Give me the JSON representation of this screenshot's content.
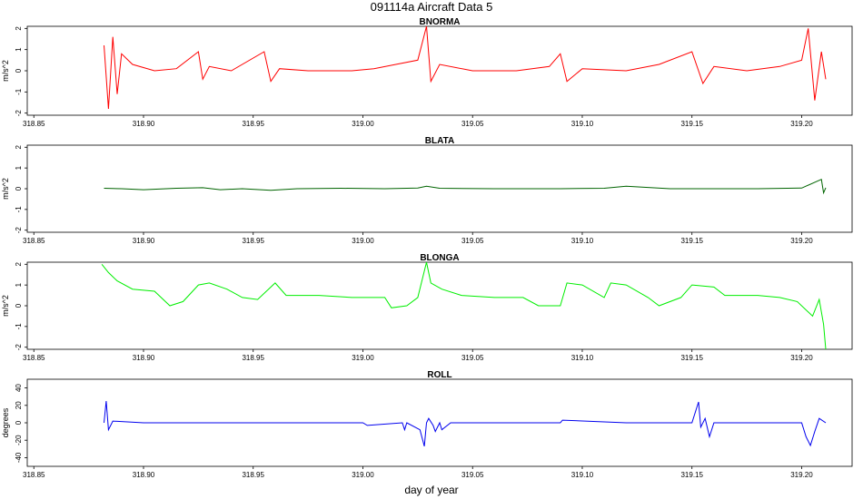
{
  "figure": {
    "title": "091114a   Aircraft Data 5",
    "xlabel": "day of year"
  },
  "chart_data": [
    {
      "type": "line",
      "title": "BNORMA",
      "ylabel": "m/s^2",
      "color": "#ff0000",
      "xlim": [
        318.847,
        319.223
      ],
      "ylim": [
        -2.1,
        2.1
      ],
      "xticks": [
        318.85,
        318.9,
        318.95,
        319.0,
        319.05,
        319.1,
        319.15,
        319.2
      ],
      "xtick_labels": [
        "318.85",
        "318.90",
        "318.95",
        "319.00",
        "319.05",
        "319.10",
        "319.15",
        "319.20"
      ],
      "yticks": [
        -2,
        -1,
        0,
        1,
        2
      ],
      "ytick_labels": [
        "-2",
        "-1",
        "0",
        "1",
        "2"
      ],
      "x": [
        318.882,
        318.884,
        318.886,
        318.888,
        318.89,
        318.895,
        318.905,
        318.915,
        318.925,
        318.927,
        318.93,
        318.94,
        318.955,
        318.958,
        318.962,
        318.975,
        318.995,
        319.005,
        319.015,
        319.025,
        319.029,
        319.031,
        319.035,
        319.05,
        319.07,
        319.085,
        319.09,
        319.093,
        319.1,
        319.12,
        319.135,
        319.15,
        319.155,
        319.16,
        319.175,
        319.19,
        319.2,
        319.203,
        319.206,
        319.209,
        319.211
      ],
      "values": [
        1.2,
        -1.8,
        1.6,
        -1.1,
        0.8,
        0.3,
        0.0,
        0.1,
        0.9,
        -0.4,
        0.2,
        0.0,
        0.9,
        -0.5,
        0.1,
        0.0,
        0.0,
        0.1,
        0.3,
        0.5,
        2.1,
        -0.5,
        0.3,
        0.0,
        0.0,
        0.2,
        0.8,
        -0.5,
        0.1,
        0.0,
        0.3,
        0.9,
        -0.6,
        0.2,
        0.0,
        0.2,
        0.5,
        2.0,
        -1.4,
        0.9,
        -0.4
      ]
    },
    {
      "type": "line",
      "title": "BLATA",
      "ylabel": "m/s^2",
      "color": "#006400",
      "xlim": [
        318.847,
        319.223
      ],
      "ylim": [
        -2.1,
        2.1
      ],
      "xticks": [
        318.85,
        318.9,
        318.95,
        319.0,
        319.05,
        319.1,
        319.15,
        319.2
      ],
      "xtick_labels": [
        "318.85",
        "318.90",
        "318.95",
        "319.00",
        "319.05",
        "319.10",
        "319.15",
        "319.20"
      ],
      "yticks": [
        -2,
        -1,
        0,
        1,
        2
      ],
      "ytick_labels": [
        "-2",
        "-1",
        "0",
        "1",
        "2"
      ],
      "x": [
        318.882,
        318.89,
        318.9,
        318.915,
        318.927,
        318.935,
        318.945,
        318.958,
        318.97,
        318.99,
        319.01,
        319.025,
        319.029,
        319.035,
        319.06,
        319.09,
        319.11,
        319.12,
        319.14,
        319.16,
        319.18,
        319.2,
        319.209,
        319.21,
        319.211
      ],
      "values": [
        0.02,
        0.0,
        -0.05,
        0.02,
        0.05,
        -0.05,
        0.0,
        -0.08,
        0.0,
        0.02,
        0.0,
        0.03,
        0.12,
        0.02,
        0.0,
        0.0,
        0.02,
        0.12,
        0.0,
        0.0,
        0.0,
        0.03,
        0.45,
        -0.2,
        0.05
      ]
    },
    {
      "type": "line",
      "title": "BLONGA",
      "ylabel": "m/s^2",
      "color": "#00ee00",
      "xlim": [
        318.847,
        319.223
      ],
      "ylim": [
        -2.1,
        2.1
      ],
      "xticks": [
        318.85,
        318.9,
        318.95,
        319.0,
        319.05,
        319.1,
        319.15,
        319.2
      ],
      "xtick_labels": [
        "318.85",
        "318.90",
        "318.95",
        "319.00",
        "319.05",
        "319.10",
        "319.15",
        "319.20"
      ],
      "yticks": [
        -2,
        -1,
        0,
        1,
        2
      ],
      "ytick_labels": [
        "-2",
        "-1",
        "0",
        "1",
        "2"
      ],
      "x": [
        318.881,
        318.884,
        318.888,
        318.895,
        318.905,
        318.912,
        318.918,
        318.925,
        318.93,
        318.938,
        318.945,
        318.952,
        318.96,
        318.965,
        318.98,
        318.995,
        319.01,
        319.013,
        319.02,
        319.025,
        319.029,
        319.031,
        319.036,
        319.045,
        319.06,
        319.073,
        319.08,
        319.09,
        319.093,
        319.1,
        319.11,
        319.113,
        319.12,
        319.13,
        319.135,
        319.145,
        319.15,
        319.16,
        319.165,
        319.18,
        319.19,
        319.198,
        319.205,
        319.208,
        319.21,
        319.211
      ],
      "values": [
        2.0,
        1.6,
        1.2,
        0.8,
        0.7,
        0.0,
        0.2,
        1.0,
        1.1,
        0.8,
        0.4,
        0.3,
        1.1,
        0.5,
        0.5,
        0.4,
        0.4,
        -0.1,
        0.0,
        0.4,
        2.1,
        1.1,
        0.8,
        0.5,
        0.4,
        0.4,
        0.0,
        0.0,
        1.1,
        1.0,
        0.4,
        1.1,
        1.0,
        0.4,
        0.0,
        0.4,
        1.0,
        0.9,
        0.5,
        0.5,
        0.4,
        0.2,
        -0.5,
        0.3,
        -0.9,
        -2.1
      ]
    },
    {
      "type": "line",
      "title": "ROLL",
      "ylabel": "degrees",
      "color": "#0000ee",
      "xlim": [
        318.847,
        319.223
      ],
      "ylim": [
        -50,
        50
      ],
      "xticks": [
        318.85,
        318.9,
        318.95,
        319.0,
        319.05,
        319.1,
        319.15,
        319.2
      ],
      "xtick_labels": [
        "318.85",
        "318.90",
        "318.95",
        "319.00",
        "319.05",
        "319.10",
        "319.15",
        "319.20"
      ],
      "yticks": [
        -40,
        -20,
        0,
        20,
        40
      ],
      "ytick_labels": [
        "-40",
        "-20",
        "0",
        "20",
        "40"
      ],
      "x": [
        318.882,
        318.883,
        318.884,
        318.886,
        318.9,
        318.93,
        318.96,
        319.0,
        319.002,
        319.018,
        319.019,
        319.02,
        319.026,
        319.028,
        319.029,
        319.03,
        319.032,
        319.033,
        319.035,
        319.036,
        319.04,
        319.07,
        319.09,
        319.091,
        319.12,
        319.15,
        319.153,
        319.154,
        319.156,
        319.158,
        319.16,
        319.18,
        319.2,
        319.202,
        319.204,
        319.206,
        319.208,
        319.211
      ],
      "values": [
        0,
        25,
        -8,
        2,
        0,
        0,
        0,
        0,
        -3,
        0,
        -8,
        0,
        -8,
        -27,
        0,
        5,
        -3,
        -10,
        0,
        -8,
        0,
        0,
        0,
        3,
        0,
        0,
        24,
        -5,
        5,
        -16,
        0,
        0,
        0,
        -16,
        -26,
        -10,
        5,
        0
      ]
    }
  ]
}
